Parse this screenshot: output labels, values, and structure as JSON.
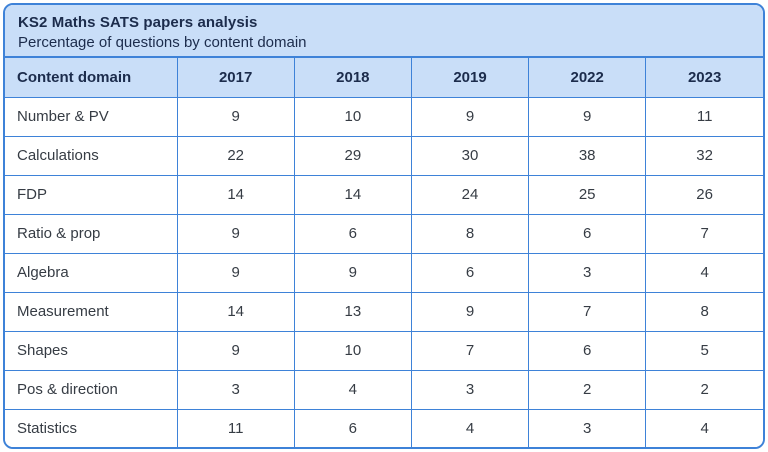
{
  "chart_data": {
    "type": "table",
    "title": "KS2 Maths SATS papers analysis",
    "subtitle": "Percentage of questions by content domain",
    "columns": [
      "Content domain",
      "2017",
      "2018",
      "2019",
      "2022",
      "2023"
    ],
    "rows": [
      {
        "label": "Number & PV",
        "values": [
          9,
          10,
          9,
          9,
          11
        ]
      },
      {
        "label": "Calculations",
        "values": [
          22,
          29,
          30,
          38,
          32
        ]
      },
      {
        "label": "FDP",
        "values": [
          14,
          14,
          24,
          25,
          26
        ]
      },
      {
        "label": "Ratio & prop",
        "values": [
          9,
          6,
          8,
          6,
          7
        ]
      },
      {
        "label": "Algebra",
        "values": [
          9,
          9,
          6,
          3,
          4
        ]
      },
      {
        "label": "Measurement",
        "values": [
          14,
          13,
          9,
          7,
          8
        ]
      },
      {
        "label": "Shapes",
        "values": [
          9,
          10,
          7,
          6,
          5
        ]
      },
      {
        "label": "Pos & direction",
        "values": [
          3,
          4,
          3,
          2,
          2
        ]
      },
      {
        "label": "Statistics",
        "values": [
          11,
          6,
          4,
          3,
          4
        ]
      }
    ],
    "layout": {
      "grid": true,
      "header_row_highlighted": true,
      "first_column_align": "left",
      "value_columns_align": "center"
    }
  },
  "colors": {
    "border": "#3e82d8",
    "header_bg": "#c9def8",
    "cell_bg": "#ffffff",
    "title_text": "#1c2c4c",
    "cell_text": "#363c44"
  }
}
